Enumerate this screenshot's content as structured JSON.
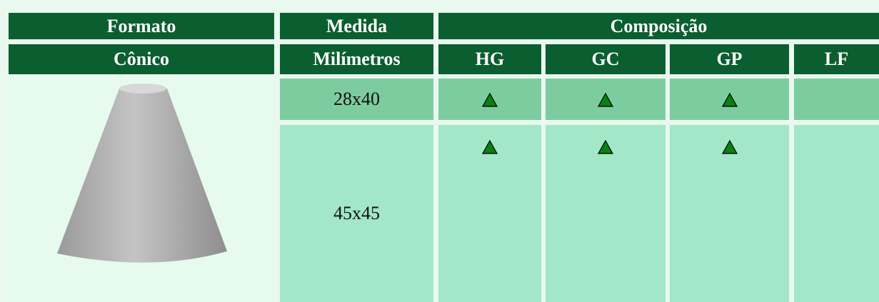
{
  "table": {
    "header": [
      "Formato",
      "Medida",
      "Composição"
    ],
    "subheader": [
      "Cônico",
      "Milímetros",
      "HG",
      "GC",
      "GP",
      "LF"
    ],
    "rows": [
      {
        "size": "28x40",
        "available": [
          true,
          true,
          true,
          false
        ]
      },
      {
        "size": "45x45",
        "available": [
          true,
          true,
          true,
          false
        ]
      }
    ]
  }
}
